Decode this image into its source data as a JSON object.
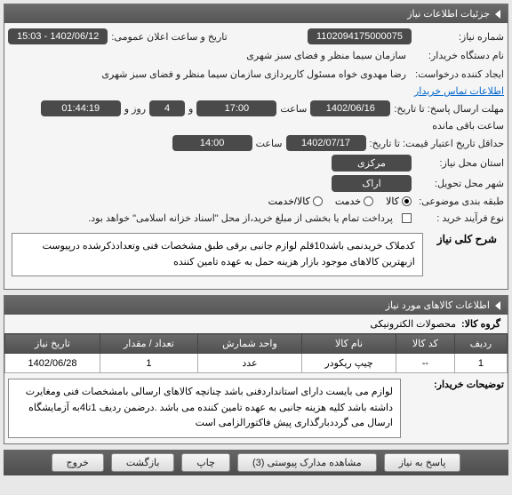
{
  "panel1": {
    "title": "جزئیات اطلاعات نیاز",
    "need_no_lbl": "شماره نیاز:",
    "need_no": "1102094175000075",
    "announce_lbl": "تاریخ و ساعت اعلان عمومی:",
    "announce": "1402/06/12 - 15:03",
    "buyer_org_lbl": "نام دستگاه خریدار:",
    "buyer_org": "سازمان سیما منظر و فضای سبز شهری",
    "requester_lbl": "ایجاد کننده درخواست:",
    "requester": "رضا مهدوی خواه مسئول کارپردازی سازمان سیما منظر و فضای سبز شهری",
    "contact_link": "اطلاعات تماس خریدار",
    "resp_deadline_lbl": "مهلت ارسال پاسخ: تا تاریخ:",
    "resp_date": "1402/06/16",
    "time_lbl": "ساعت",
    "resp_time": "17:00",
    "and_lbl": "و",
    "days": "4",
    "days_lbl": "روز و",
    "remain_time": "01:44:19",
    "remain_lbl": "ساعت باقی مانده",
    "price_valid_lbl": "حداقل تاریخ اعتبار قیمت: تا تاریخ:",
    "price_date": "1402/07/17",
    "price_time": "14:00",
    "req_loc_lbl": "استان محل نیاز:",
    "req_loc": "مرکزی",
    "deliv_city_lbl": "شهر محل تحویل:",
    "deliv_city": "اراک",
    "subject_cat_lbl": "طبقه بندی موضوعی:",
    "cat_goods": "کالا",
    "cat_service": "خدمت",
    "cat_goods_service": "کالا/خدمت",
    "purchase_type_lbl": "نوع فرآیند خرید :",
    "pay_note": "پرداخت تمام یا بخشی از مبلغ خرید،از محل \"اسناد خزانه اسلامی\" خواهد بود.",
    "desc_lbl": "شرح کلی نیاز",
    "desc": "کدملاک خریدنمی باشد10قلم لوازم جانبی برقی طبق مشخصات فنی وتعدادذکرشده درپیوست ازبهترین کالاهای موجود بازار هزینه حمل به عهده تامین کننده"
  },
  "panel2": {
    "title": "اطلاعات کالاهای مورد نیاز",
    "group_lbl": "گروه کالا:",
    "group_val": "محصولات الکترونیکی",
    "cols": {
      "row": "ردیف",
      "code": "کد کالا",
      "name": "نام کالا",
      "unit": "واحد شمارش",
      "qty": "تعداد / مقدار",
      "date": "تاریخ نیاز"
    },
    "rows": [
      {
        "row": "1",
        "code": "--",
        "name": "چیپ ریکودر",
        "unit": "عدد",
        "qty": "1",
        "date": "1402/06/28"
      }
    ],
    "buyer_note_lbl": "توضیحات خریدار:",
    "buyer_note": "لوازم می بایست دارای استانداردفنی باشد چنانچه کالاهای ارسالی بامشخصات فنی ومغایرت داشته باشد کلیه هزینه جانبی به عهده تامین کننده می باشد .درضمن ردیف 1تا4به آزمایشگاه ارسال می گرددبارگذاری پیش فاکتورالزامی است"
  },
  "footer": {
    "reply": "پاسخ به نیاز",
    "attach": "مشاهده مدارک پیوستی (3)",
    "print": "چاپ",
    "back": "بازگشت",
    "exit": "خروج"
  }
}
